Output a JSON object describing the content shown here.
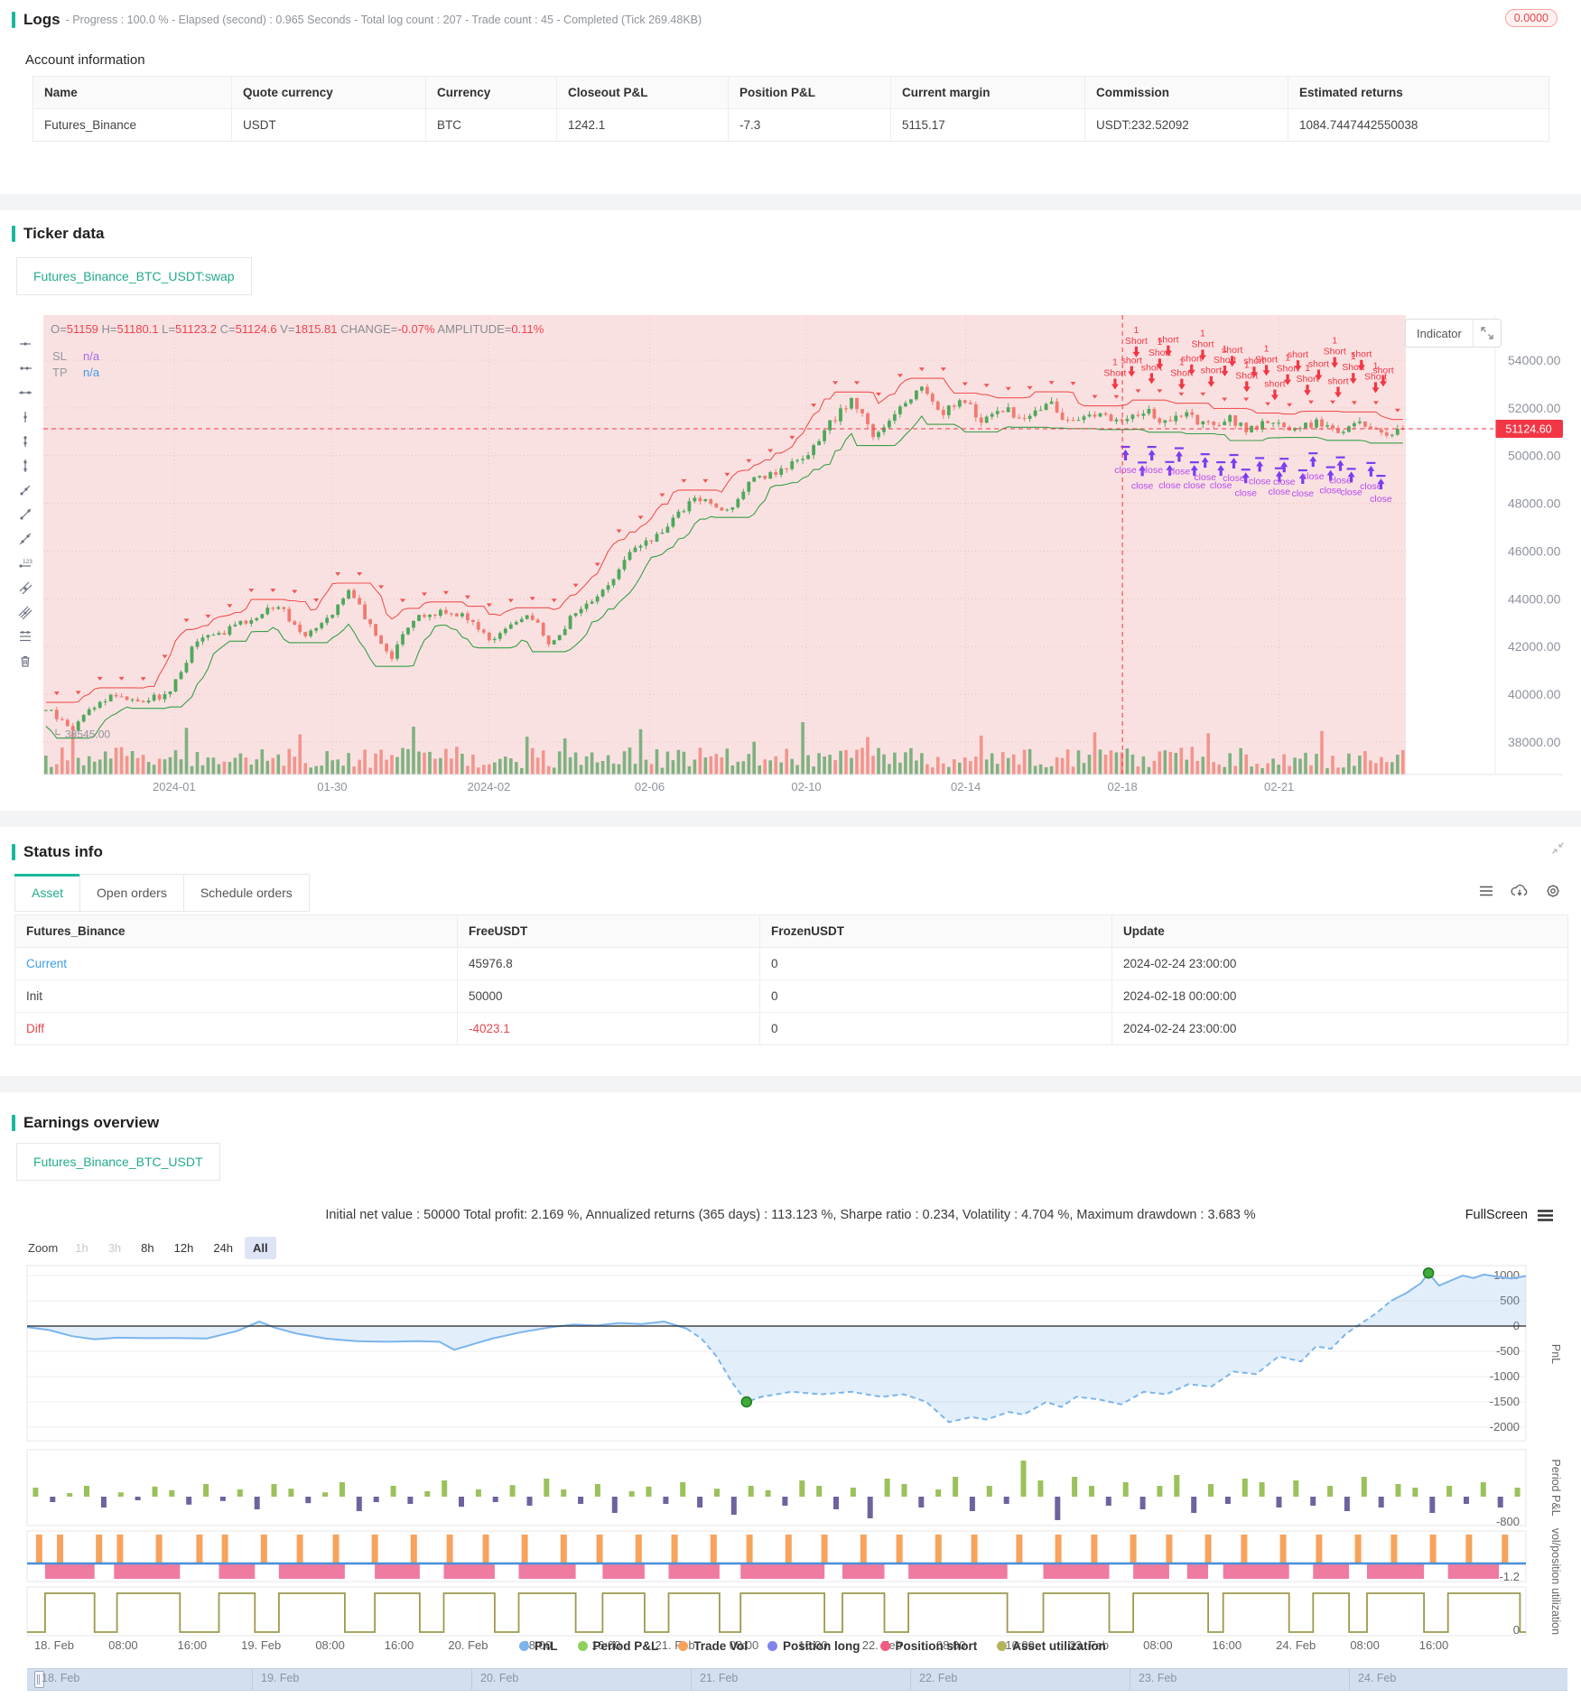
{
  "colors": {
    "accent": "#19b89b",
    "red": "#f23645",
    "up_green": "#4ea85c",
    "down_red": "#f17a70",
    "pink_bg": "#fae1e1",
    "purple_close": "#b44bf2",
    "purple_arrow": "#7a3df0",
    "sl_purple": "#a06ce8",
    "tp_blue": "#3f9bea",
    "link_blue": "#3d9eea",
    "diff_red": "#e5484d"
  },
  "logs": {
    "title": "Logs",
    "progress_line": "- Progress : 100.0 % - Elapsed (second) : 0.965 Seconds - Total log count : 207 - Trade count : 45 - Completed (Tick 269.48KB)",
    "badge": "0.0000",
    "account_info_title": "Account information",
    "table": {
      "headers": [
        "Name",
        "Quote currency",
        "Currency",
        "Closeout P&L",
        "Position P&L",
        "Current margin",
        "Commission",
        "Estimated returns"
      ],
      "row": [
        "Futures_Binance",
        "USDT",
        "BTC",
        "1242.1",
        "-7.3",
        "5115.17",
        "USDT:232.52092",
        "1084.7447442550038"
      ]
    }
  },
  "ticker": {
    "title": "Ticker data",
    "tab": "Futures_Binance_BTC_USDT:swap",
    "indicator_button": "Indicator",
    "toolbar_icons": [
      "horizontal-segment-icon",
      "horizontal-ray-icon",
      "horizontal-line-icon",
      "vertical-segment-icon",
      "vertical-ray-icon",
      "vertical-line-icon",
      "trend-segment-icon",
      "trend-ray-icon",
      "trend-line-icon",
      "price-line-icon",
      "parallel-segment-icon",
      "parallel-channel-icon",
      "fibonacci-icon",
      "delete-icon"
    ],
    "chart_data": {
      "type": "candlestick",
      "ohlc_readout": [
        [
          "O=",
          "51159"
        ],
        [
          "H=",
          "51180.1"
        ],
        [
          "L=",
          "51123.2"
        ],
        [
          "C=",
          "51124.6"
        ],
        [
          "V=",
          "1815.81"
        ],
        [
          "CHANGE=",
          "-0.07%"
        ],
        [
          "AMPLITUDE=",
          "0.11%"
        ]
      ],
      "sl_label": "SL",
      "sl_value": "n/a",
      "tp_label": "TP",
      "tp_value": "n/a",
      "price_ticks": [
        54000,
        52000,
        50000,
        48000,
        46000,
        44000,
        42000,
        40000,
        38000
      ],
      "price_tick_labels": [
        "54000.00",
        "52000.00",
        "50000.00",
        "48000.00",
        "46000.00",
        "44000.00",
        "42000.00",
        "40000.00",
        "38000.00"
      ],
      "current_price": 51124.6,
      "current_price_tag": "51124.60",
      "low_marker": "38545.00",
      "low_price": 38545,
      "date_ticks": [
        "2024-01",
        "01-30",
        "2024-02",
        "02-06",
        "02-10",
        "02-14",
        "02-18",
        "02-21"
      ],
      "date_tick_fracs": [
        9.6,
        21.2,
        32.7,
        44.5,
        56,
        67.7,
        79.2,
        90.7
      ],
      "trade_zone_start_frac": 79.2,
      "marker_short_label": "Short",
      "marker_short_label_lc": "short",
      "marker_count_label": "1",
      "marker_close_label": "close",
      "short_marker_count": 26,
      "close_marker_count": 20,
      "anchor_path": [
        [
          0,
          39400
        ],
        [
          1.5,
          38700
        ],
        [
          2,
          38545
        ],
        [
          3,
          39300
        ],
        [
          5,
          40000
        ],
        [
          7,
          39700
        ],
        [
          9,
          40000
        ],
        [
          10,
          41000
        ],
        [
          11,
          42200
        ],
        [
          13,
          42600
        ],
        [
          15,
          43100
        ],
        [
          17,
          43800
        ],
        [
          19,
          42500
        ],
        [
          21,
          43400
        ],
        [
          22.5,
          44400
        ],
        [
          24,
          42700
        ],
        [
          25.5,
          41600
        ],
        [
          27,
          43100
        ],
        [
          29,
          43500
        ],
        [
          31,
          43300
        ],
        [
          32.7,
          42300
        ],
        [
          34,
          42800
        ],
        [
          36,
          43300
        ],
        [
          37,
          42000
        ],
        [
          39,
          43400
        ],
        [
          41,
          44300
        ],
        [
          43,
          45900
        ],
        [
          44.5,
          46400
        ],
        [
          46,
          47200
        ],
        [
          48,
          48300
        ],
        [
          50,
          47600
        ],
        [
          52,
          48900
        ],
        [
          54,
          49400
        ],
        [
          56,
          49800
        ],
        [
          58,
          51500
        ],
        [
          59.5,
          52400
        ],
        [
          61,
          50700
        ],
        [
          63,
          52100
        ],
        [
          64.5,
          52900
        ],
        [
          66,
          51800
        ],
        [
          67.7,
          52300
        ],
        [
          69,
          51400
        ],
        [
          70.5,
          52000
        ],
        [
          72,
          51500
        ],
        [
          74,
          52200
        ],
        [
          75.5,
          51300
        ],
        [
          77,
          51800
        ],
        [
          79.2,
          51500
        ],
        [
          81,
          51900
        ],
        [
          82.5,
          51300
        ],
        [
          84,
          51700
        ],
        [
          85.5,
          51200
        ],
        [
          87,
          51600
        ],
        [
          88.5,
          51100
        ],
        [
          90.7,
          51500
        ],
        [
          92,
          51000
        ],
        [
          93.5,
          51400
        ],
        [
          95,
          51100
        ],
        [
          97,
          51300
        ],
        [
          98.5,
          50900
        ],
        [
          100,
          51124.6
        ]
      ]
    }
  },
  "status": {
    "title": "Status info",
    "tabs": [
      "Asset",
      "Open orders",
      "Schedule orders"
    ],
    "active_tab": "Asset",
    "icons": [
      "menu-icon",
      "cloud-download-icon",
      "gear-icon"
    ],
    "table": {
      "headers": [
        "Futures_Binance",
        "FreeUSDT",
        "FrozenUSDT",
        "Update"
      ],
      "rows": [
        {
          "label": "Current",
          "label_color": "#3d9eea",
          "free": "45976.8",
          "free_color": "#444",
          "frozen": "0",
          "update": "2024-02-24 23:00:00"
        },
        {
          "label": "Init",
          "label_color": "#444",
          "free": "50000",
          "free_color": "#444",
          "frozen": "0",
          "update": "2024-02-18 00:00:00"
        },
        {
          "label": "Diff",
          "label_color": "#e5484d",
          "free": "-4023.1",
          "free_color": "#e5484d",
          "frozen": "0",
          "update": "2024-02-24 23:00:00"
        }
      ]
    }
  },
  "earnings": {
    "title": "Earnings overview",
    "tab": "Futures_Binance_BTC_USDT",
    "stats_line": "Initial net value : 50000 Total profit: 2.169 %, Annualized returns (365 days) : 113.123 %, Sharpe ratio : 0.234, Volatility : 4.704 %, Maximum drawdown : 3.683 %",
    "fullscreen_label": "FullScreen",
    "zoom": {
      "label": "Zoom",
      "buttons": [
        {
          "label": "1h",
          "state": "disabled"
        },
        {
          "label": "3h",
          "state": "disabled"
        },
        {
          "label": "8h",
          "state": "normal"
        },
        {
          "label": "12h",
          "state": "normal"
        },
        {
          "label": "24h",
          "state": "normal"
        },
        {
          "label": "All",
          "state": "active"
        }
      ]
    },
    "chart_data": {
      "type": "multi-pane-timeseries",
      "panes": [
        "PnL",
        "Period P&L",
        "vol/position",
        "utilization"
      ],
      "pnl_ticks": [
        1000,
        500,
        0,
        -500,
        -1000,
        -1500,
        -2000
      ],
      "period_tick": "-800",
      "vol_tick": "-1.2",
      "util_tick": "0",
      "pnl_points": [
        [
          0,
          -20
        ],
        [
          1.5,
          -80
        ],
        [
          3,
          -200
        ],
        [
          4.5,
          -260
        ],
        [
          6,
          -230
        ],
        [
          8,
          -240
        ],
        [
          10,
          -235
        ],
        [
          12,
          -245
        ],
        [
          14,
          -100
        ],
        [
          15.5,
          90
        ],
        [
          16.5,
          -30
        ],
        [
          18,
          -150
        ],
        [
          20,
          -250
        ],
        [
          22,
          -300
        ],
        [
          24,
          -310
        ],
        [
          26,
          -300
        ],
        [
          27.5,
          -310
        ],
        [
          28.5,
          -470
        ],
        [
          29.5,
          -380
        ],
        [
          31,
          -250
        ],
        [
          33,
          -120
        ],
        [
          35,
          -20
        ],
        [
          36.5,
          30
        ],
        [
          38,
          10
        ],
        [
          39.5,
          60
        ],
        [
          41,
          40
        ],
        [
          42.5,
          90
        ],
        [
          44,
          -50
        ],
        [
          45,
          -250
        ],
        [
          46,
          -600
        ],
        [
          47,
          -1100
        ],
        [
          48,
          -1500
        ],
        [
          49,
          -1400
        ],
        [
          51,
          -1300
        ],
        [
          53,
          -1350
        ],
        [
          55,
          -1300
        ],
        [
          57,
          -1400
        ],
        [
          58.5,
          -1350
        ],
        [
          60,
          -1500
        ],
        [
          61.5,
          -1900
        ],
        [
          63,
          -1800
        ],
        [
          64,
          -1850
        ],
        [
          65.5,
          -1700
        ],
        [
          66.5,
          -1750
        ],
        [
          68,
          -1500
        ],
        [
          69,
          -1600
        ],
        [
          70,
          -1400
        ],
        [
          71.5,
          -1450
        ],
        [
          73,
          -1550
        ],
        [
          74.5,
          -1300
        ],
        [
          76,
          -1350
        ],
        [
          77.5,
          -1150
        ],
        [
          79,
          -1200
        ],
        [
          80.5,
          -900
        ],
        [
          82,
          -950
        ],
        [
          83.5,
          -600
        ],
        [
          85,
          -700
        ],
        [
          86,
          -400
        ],
        [
          87,
          -450
        ],
        [
          88,
          -150
        ],
        [
          89,
          50
        ],
        [
          90,
          250
        ],
        [
          91,
          500
        ],
        [
          92,
          650
        ],
        [
          93,
          850
        ],
        [
          93.5,
          1050
        ],
        [
          94.2,
          800
        ],
        [
          95,
          900
        ],
        [
          95.8,
          1000
        ],
        [
          96.5,
          950
        ],
        [
          97.2,
          1020
        ],
        [
          98,
          980
        ],
        [
          99,
          940
        ],
        [
          100,
          990
        ]
      ],
      "pnl_dash_range": [
        44,
        91
      ],
      "pnl_extreme_dots": [
        [
          48,
          -1500
        ],
        [
          93.5,
          1050
        ]
      ],
      "period_bars": [
        0.25,
        -0.15,
        0.1,
        0.3,
        -0.3,
        0.12,
        -0.1,
        0.28,
        0.18,
        -0.22,
        0.35,
        -0.12,
        0.2,
        -0.35,
        0.35,
        0.22,
        -0.18,
        0.12,
        0.4,
        -0.4,
        -0.15,
        0.3,
        -0.2,
        0.15,
        0.45,
        -0.28,
        0.2,
        -0.15,
        0.32,
        -0.25,
        0.5,
        0.2,
        -0.2,
        0.35,
        -0.45,
        0.15,
        0.28,
        -0.2,
        0.4,
        -0.3,
        0.22,
        -0.5,
        0.3,
        0.18,
        -0.25,
        0.45,
        0.3,
        -0.35,
        0.25,
        -0.6,
        0.5,
        0.35,
        -0.3,
        0.2,
        0.55,
        -0.4,
        0.3,
        -0.2,
        1.0,
        0.45,
        -0.65,
        0.55,
        0.3,
        -0.25,
        0.4,
        -0.35,
        0.3,
        0.6,
        -0.45,
        0.35,
        -0.2,
        0.5,
        0.4,
        -0.3,
        0.45,
        -0.25,
        0.3,
        -0.4,
        0.55,
        -0.3,
        0.35,
        0.25,
        -0.45,
        0.3,
        -0.2,
        0.4,
        -0.3,
        0.25
      ],
      "vol_spike_fracs": [
        0.8,
        2.2,
        4.8,
        6.2,
        8.8,
        11.5,
        13.2,
        15.8,
        18.2,
        20.6,
        23.2,
        25.8,
        28.2,
        30.6,
        33.2,
        35.8,
        38.2,
        40.8,
        43.2,
        45.8,
        48.2,
        50.8,
        53.2,
        55.8,
        58.2,
        60.8,
        63.2,
        66.2,
        68.8,
        71.2,
        73.8,
        76.2,
        78.8,
        81.2,
        83.8,
        86.2,
        88.8,
        91.2,
        93.8,
        96.2,
        98.6
      ],
      "short_blocks": [
        [
          1.2,
          4.5
        ],
        [
          5.8,
          10.2
        ],
        [
          12.8,
          15.2
        ],
        [
          16.8,
          21.2
        ],
        [
          23.2,
          26.2
        ],
        [
          27.8,
          31.2
        ],
        [
          32.8,
          36.6
        ],
        [
          38.4,
          41.2
        ],
        [
          42.8,
          46.2
        ],
        [
          47.6,
          53.2
        ],
        [
          54.4,
          57.2
        ],
        [
          58.8,
          65.4
        ],
        [
          67.8,
          72.2
        ],
        [
          73.8,
          76.2
        ],
        [
          77.4,
          78.8
        ],
        [
          79.8,
          84.2
        ],
        [
          85.8,
          88.2
        ],
        [
          89.4,
          93.2
        ],
        [
          94.8,
          98.2
        ]
      ],
      "util_high": [
        [
          1.2,
          4.5
        ],
        [
          6,
          10.2
        ],
        [
          12.8,
          15.2
        ],
        [
          16.8,
          21.2
        ],
        [
          23.2,
          26.2
        ],
        [
          27.8,
          31.2
        ],
        [
          32.8,
          36.6
        ],
        [
          38.4,
          41.2
        ],
        [
          42.8,
          46.2
        ],
        [
          47.6,
          53.2
        ],
        [
          54.4,
          57.2
        ],
        [
          58.8,
          65.4
        ],
        [
          67.8,
          72.2
        ],
        [
          73.8,
          78.8
        ],
        [
          79.8,
          84.2
        ],
        [
          85.8,
          88.2
        ],
        [
          89.4,
          93.2
        ],
        [
          94.8,
          99.6
        ]
      ],
      "x_labels": [
        "18. Feb",
        "08:00",
        "16:00",
        "19. Feb",
        "08:00",
        "16:00",
        "20. Feb",
        "08:00",
        "16:00",
        "21. Feb",
        "08:00",
        "16:00",
        "22. Feb",
        "08:00",
        "16:00",
        "23. Feb",
        "08:00",
        "16:00",
        "24. Feb",
        "08:00",
        "16:00"
      ],
      "legend": [
        {
          "label": "PnL",
          "color": "#7cb5ec"
        },
        {
          "label": "Period P&L",
          "color": "#8fd05c"
        },
        {
          "label": "Trade Vol",
          "color": "#f7a35c"
        },
        {
          "label": "Position long",
          "color": "#8085e9"
        },
        {
          "label": "Position short",
          "color": "#f15c80"
        },
        {
          "label": "Asset utilization",
          "color": "#b5b35c"
        }
      ],
      "navigator_labels": [
        "18. Feb",
        "19. Feb",
        "20. Feb",
        "21. Feb",
        "22. Feb",
        "23. Feb",
        "24. Feb"
      ]
    }
  }
}
